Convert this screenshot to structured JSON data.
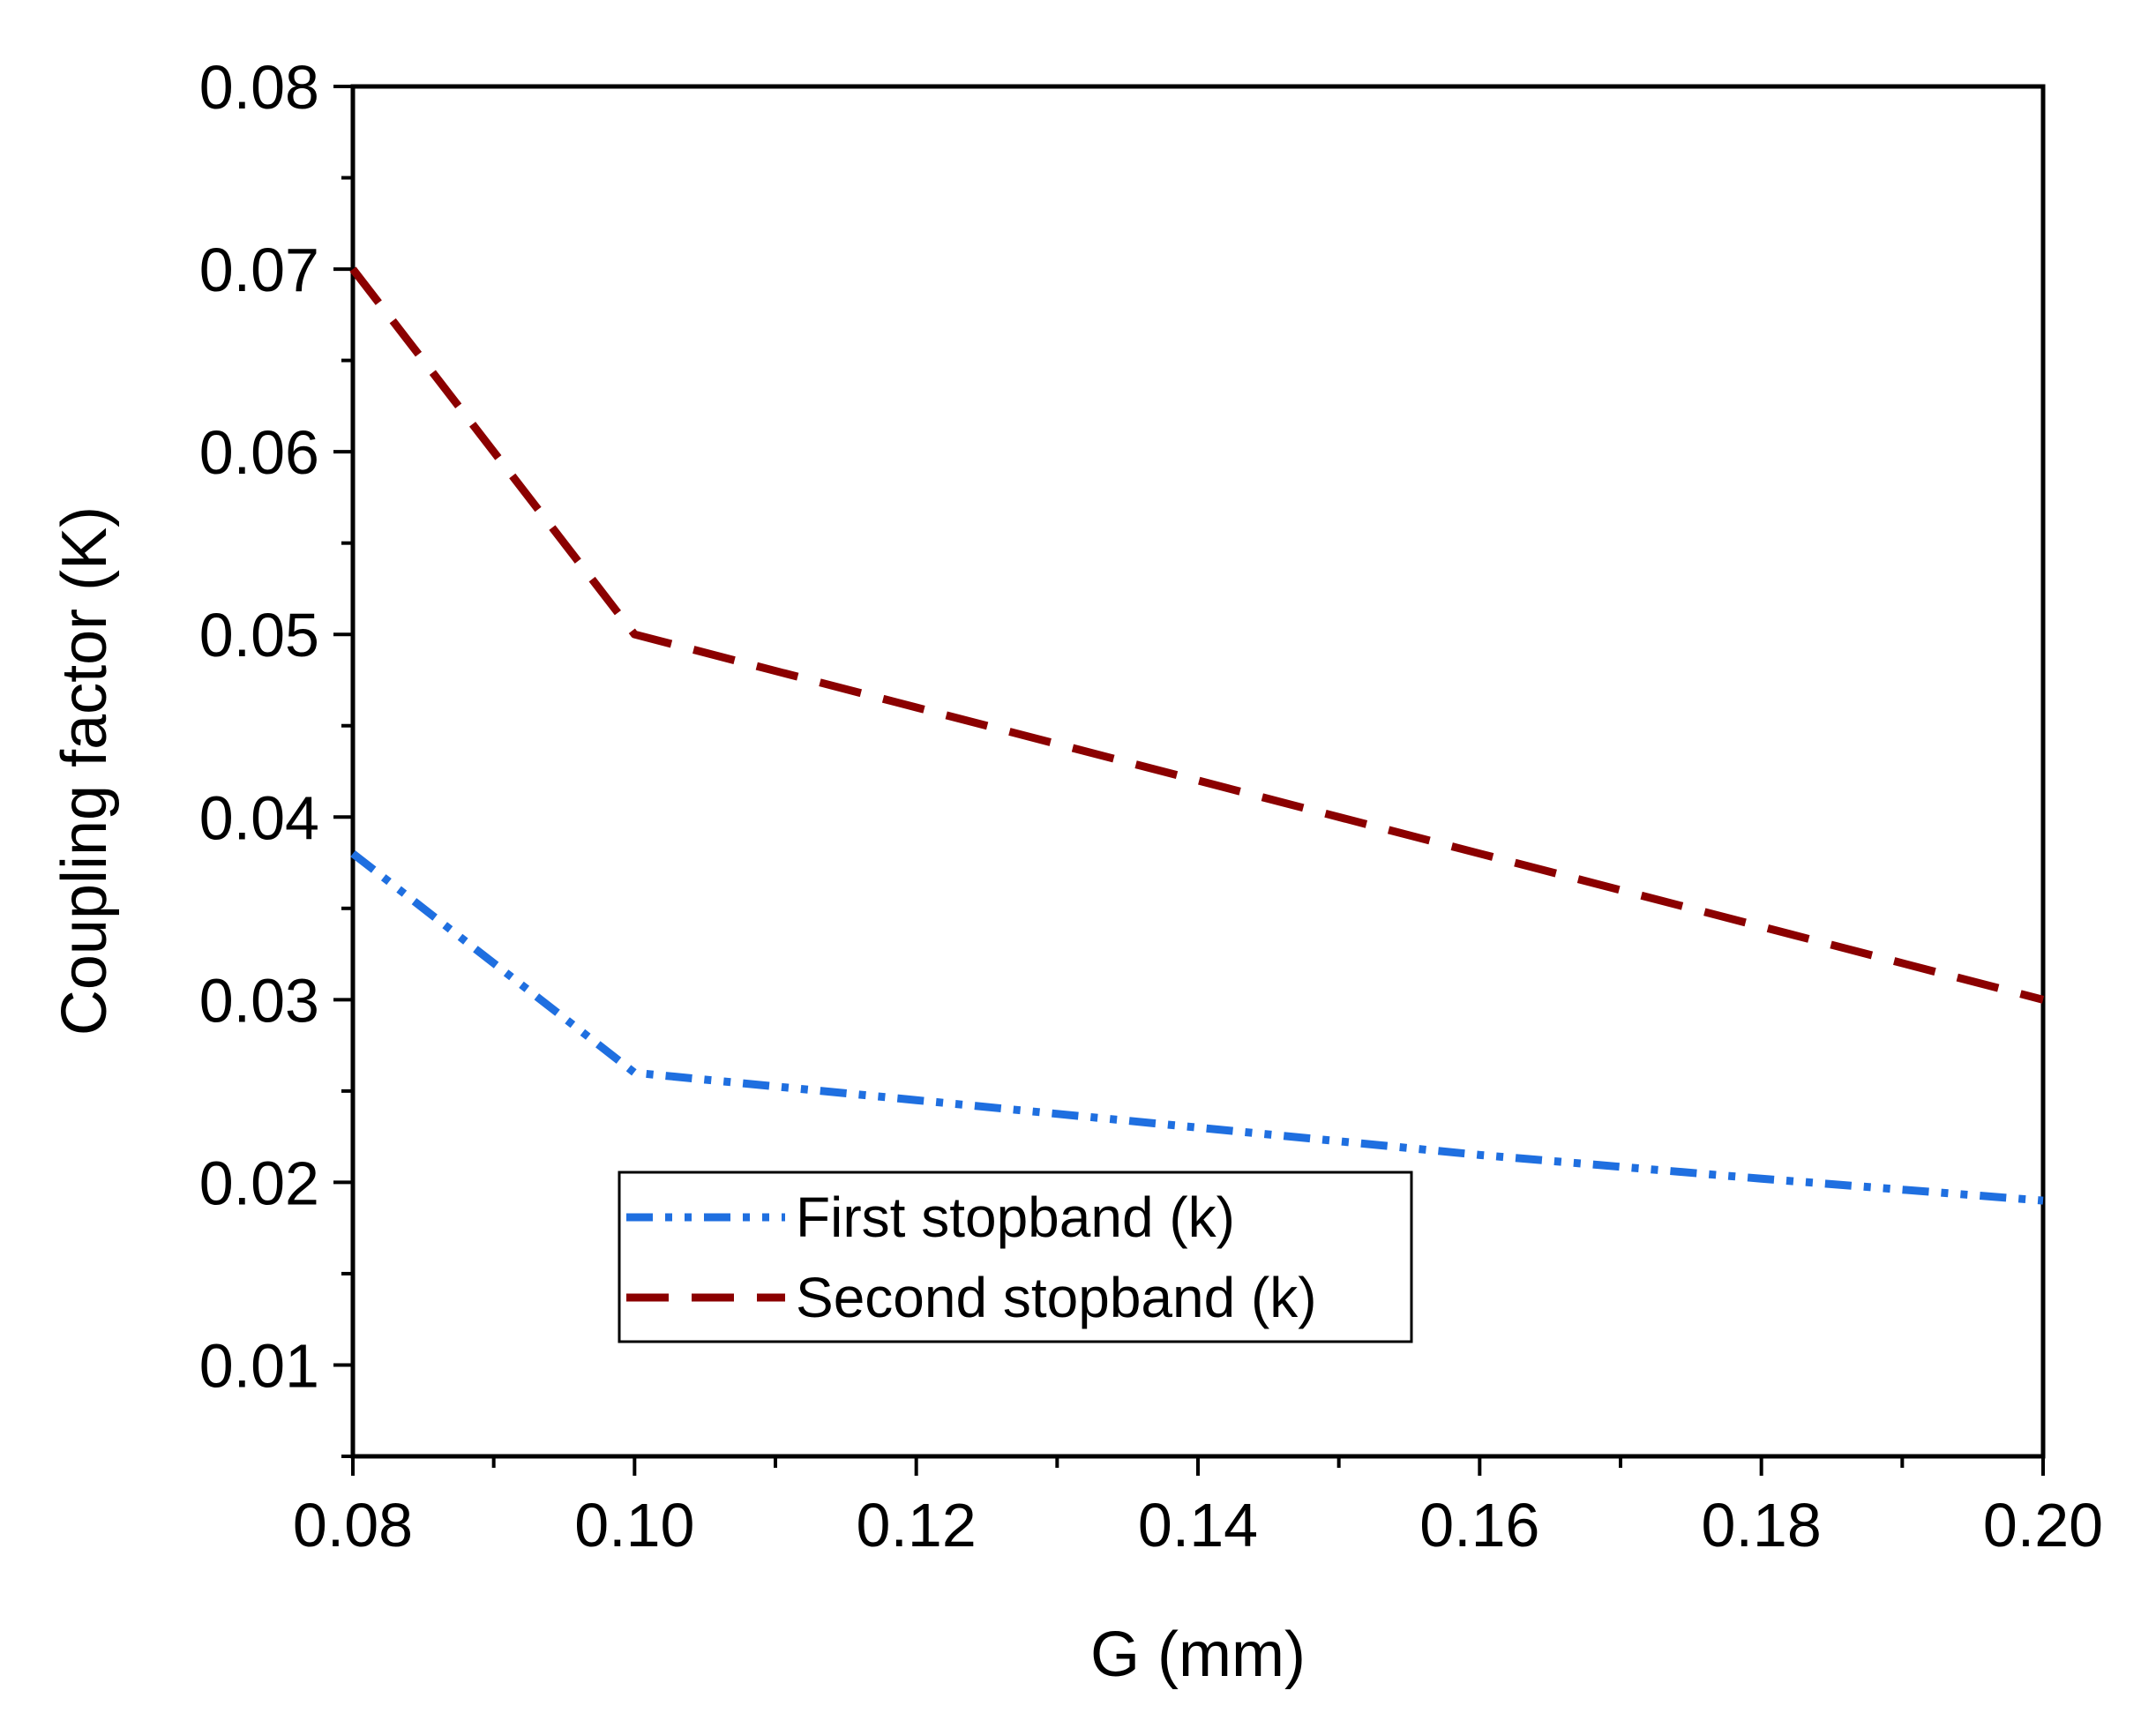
{
  "chart_data": {
    "type": "line",
    "title": "",
    "xlabel": "G (mm)",
    "ylabel": "Coupling factor (K)",
    "xlim": [
      0.08,
      0.2
    ],
    "ylim": [
      0.005,
      0.08
    ],
    "x_ticks": [
      "0.08",
      "0.10",
      "0.12",
      "0.14",
      "0.16",
      "0.18",
      "0.20"
    ],
    "y_ticks": [
      "0.01",
      "0.02",
      "0.03",
      "0.04",
      "0.05",
      "0.06",
      "0.07",
      "0.08"
    ],
    "grid": false,
    "legend_position": "bottom-center",
    "x": [
      0.08,
      0.1,
      0.12,
      0.14,
      0.16,
      0.18,
      0.2
    ],
    "series": [
      {
        "name": "First stopband (k)",
        "values": [
          0.038,
          0.026,
          0.0245,
          0.023,
          0.0215,
          0.0202,
          0.019
        ],
        "color": "#1f6fe0",
        "style": "dash-dot-dot"
      },
      {
        "name": "Second stopband (k)",
        "values": [
          0.07,
          0.05,
          0.046,
          0.042,
          0.038,
          0.034,
          0.03
        ],
        "color": "#8b0000",
        "style": "dashed"
      }
    ]
  }
}
